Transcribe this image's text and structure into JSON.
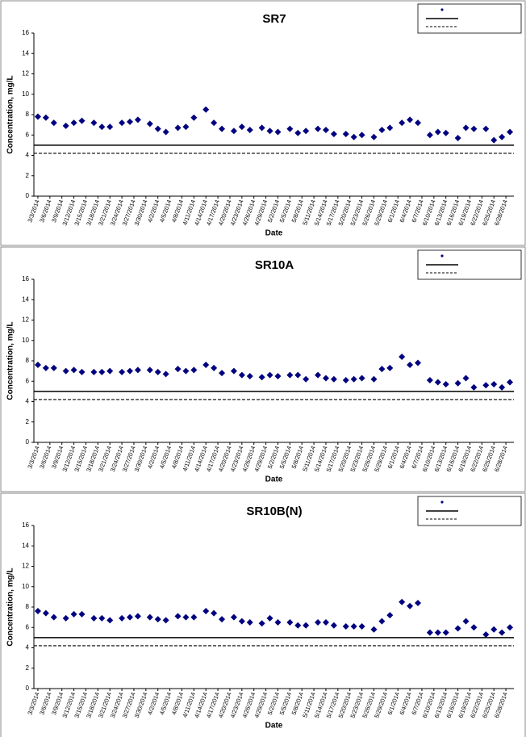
{
  "chart_data": [
    {
      "type": "scatter",
      "title": "SR7",
      "x_label": "Date",
      "y_label": "Concentration, mg/L",
      "legend": "upper right",
      "x": [
        "3/3/2014",
        "3/5/2014",
        "3/7/2014",
        "3/10/2014",
        "3/12/2014",
        "3/14/2014",
        "3/17/2014",
        "3/19/2014",
        "3/21/2014",
        "3/24/2014",
        "3/26/2014",
        "3/28/2014",
        "3/31/2014",
        "4/2/2014",
        "4/4/2014",
        "4/7/2014",
        "4/9/2014",
        "4/11/2014",
        "4/14/2014",
        "4/16/2014",
        "4/18/2014",
        "4/21/2014",
        "4/23/2014",
        "4/25/2014",
        "4/28/2014",
        "4/30/2014",
        "5/2/2014",
        "5/5/2014",
        "5/7/2014",
        "5/9/2014",
        "5/12/2014",
        "5/14/2014",
        "5/16/2014",
        "5/19/2014",
        "5/21/2014",
        "5/23/2014",
        "5/26/2014",
        "5/28/2014",
        "5/30/2014",
        "6/2/2014",
        "6/4/2014",
        "6/6/2014",
        "6/9/2014",
        "6/11/2014",
        "6/13/2014",
        "6/16/2014",
        "6/18/2014",
        "6/20/2014",
        "6/23/2014",
        "6/25/2014",
        "6/27/2014",
        "6/29/2014"
      ],
      "series": [
        {
          "color": "#000080",
          "values": [
            7.8,
            7.7,
            7.2,
            6.9,
            7.2,
            7.4,
            7.2,
            6.8,
            6.8,
            7.2,
            7.3,
            7.5,
            7.1,
            6.6,
            6.3,
            6.7,
            6.8,
            7.7,
            8.5,
            7.2,
            6.6,
            6.4,
            6.8,
            6.5,
            6.7,
            6.4,
            6.3,
            6.6,
            6.2,
            6.4,
            6.6,
            6.5,
            6.1,
            6.1,
            5.8,
            6.0,
            5.8,
            6.5,
            6.7,
            7.2,
            7.5,
            7.2,
            6.0,
            6.3,
            6.2,
            5.7,
            6.7,
            6.6,
            6.6,
            5.5,
            5.8,
            6.3
          ]
        }
      ],
      "reference_lines": [
        {
          "value": 5,
          "style": "solid"
        },
        {
          "value": 4.2,
          "style": "dashed"
        }
      ],
      "xlim": [
        "3/2/2014",
        "6/30/2014"
      ],
      "xticks": [
        "3/3/2014",
        "3/6/2014",
        "3/9/2014",
        "3/12/2014",
        "3/15/2014",
        "3/18/2014",
        "3/21/2014",
        "3/24/2014",
        "3/27/2014",
        "3/30/2014",
        "4/2/2014",
        "4/5/2014",
        "4/8/2014",
        "4/11/2014",
        "4/14/2014",
        "4/17/2014",
        "4/20/2014",
        "4/23/2014",
        "4/26/2014",
        "4/29/2014",
        "5/2/2014",
        "5/5/2014",
        "5/8/2014",
        "5/11/2014",
        "5/14/2014",
        "5/17/2014",
        "5/20/2014",
        "5/23/2014",
        "5/26/2014",
        "5/29/2014",
        "6/1/2014",
        "6/4/2014",
        "6/7/2014",
        "6/10/2014",
        "6/13/2014",
        "6/16/2014",
        "6/19/2014",
        "6/22/2014",
        "6/25/2014",
        "6/28/2014"
      ],
      "ylim": [
        0,
        16
      ],
      "yticks": [
        0,
        2,
        4,
        6,
        8,
        10,
        12,
        14,
        16
      ]
    },
    {
      "type": "scatter",
      "title": "SR10A",
      "x_label": "Date",
      "y_label": "Concentration, mg/L",
      "legend": "upper right",
      "x": [
        "3/3/2014",
        "3/5/2014",
        "3/7/2014",
        "3/10/2014",
        "3/12/2014",
        "3/14/2014",
        "3/17/2014",
        "3/19/2014",
        "3/21/2014",
        "3/24/2014",
        "3/26/2014",
        "3/28/2014",
        "3/31/2014",
        "4/2/2014",
        "4/4/2014",
        "4/7/2014",
        "4/9/2014",
        "4/11/2014",
        "4/14/2014",
        "4/16/2014",
        "4/18/2014",
        "4/21/2014",
        "4/23/2014",
        "4/25/2014",
        "4/28/2014",
        "4/30/2014",
        "5/2/2014",
        "5/5/2014",
        "5/7/2014",
        "5/9/2014",
        "5/12/2014",
        "5/14/2014",
        "5/16/2014",
        "5/19/2014",
        "5/21/2014",
        "5/23/2014",
        "5/26/2014",
        "5/28/2014",
        "5/30/2014",
        "6/2/2014",
        "6/4/2014",
        "6/6/2014",
        "6/9/2014",
        "6/11/2014",
        "6/13/2014",
        "6/16/2014",
        "6/18/2014",
        "6/20/2014",
        "6/23/2014",
        "6/25/2014",
        "6/27/2014",
        "6/29/2014"
      ],
      "series": [
        {
          "color": "#000080",
          "values": [
            7.6,
            7.3,
            7.3,
            7.0,
            7.1,
            6.9,
            6.9,
            6.9,
            7.0,
            6.9,
            7.0,
            7.1,
            7.1,
            6.9,
            6.7,
            7.2,
            7.0,
            7.1,
            7.6,
            7.3,
            6.8,
            7.0,
            6.6,
            6.5,
            6.4,
            6.6,
            6.5,
            6.6,
            6.6,
            6.2,
            6.6,
            6.3,
            6.2,
            6.1,
            6.2,
            6.3,
            6.2,
            7.2,
            7.3,
            8.4,
            7.6,
            7.8,
            6.1,
            5.9,
            5.7,
            5.8,
            6.3,
            5.4,
            5.6,
            5.7,
            5.4,
            5.9
          ]
        }
      ],
      "reference_lines": [
        {
          "value": 5,
          "style": "solid"
        },
        {
          "value": 4.2,
          "style": "dashed"
        }
      ],
      "xlim": [
        "3/2/2014",
        "6/30/2014"
      ],
      "xticks": [
        "3/3/2014",
        "3/6/2014",
        "3/9/2014",
        "3/12/2014",
        "3/15/2014",
        "3/18/2014",
        "3/21/2014",
        "3/24/2014",
        "3/27/2014",
        "3/30/2014",
        "4/2/2014",
        "4/5/2014",
        "4/8/2014",
        "4/11/2014",
        "4/14/2014",
        "4/17/2014",
        "4/20/2014",
        "4/23/2014",
        "4/26/2014",
        "4/29/2014",
        "5/2/2014",
        "5/5/2014",
        "5/8/2014",
        "5/11/2014",
        "5/14/2014",
        "5/17/2014",
        "5/20/2014",
        "5/23/2014",
        "5/26/2014",
        "5/29/2014",
        "6/1/2014",
        "6/4/2014",
        "6/7/2014",
        "6/10/2014",
        "6/13/2014",
        "6/16/2014",
        "6/19/2014",
        "6/22/2014",
        "6/25/2014",
        "6/28/2014"
      ],
      "ylim": [
        0,
        16
      ],
      "yticks": [
        0,
        2,
        4,
        6,
        8,
        10,
        12,
        14,
        16
      ]
    },
    {
      "type": "scatter",
      "title": "SR10B(N)",
      "x_label": "Date",
      "y_label": "Concentration, mg/L",
      "legend": "upper right",
      "x": [
        "3/3/2014",
        "3/5/2014",
        "3/7/2014",
        "3/10/2014",
        "3/12/2014",
        "3/14/2014",
        "3/17/2014",
        "3/19/2014",
        "3/21/2014",
        "3/24/2014",
        "3/26/2014",
        "3/28/2014",
        "3/31/2014",
        "4/2/2014",
        "4/4/2014",
        "4/7/2014",
        "4/9/2014",
        "4/11/2014",
        "4/14/2014",
        "4/16/2014",
        "4/18/2014",
        "4/21/2014",
        "4/23/2014",
        "4/25/2014",
        "4/28/2014",
        "4/30/2014",
        "5/2/2014",
        "5/5/2014",
        "5/7/2014",
        "5/9/2014",
        "5/12/2014",
        "5/14/2014",
        "5/16/2014",
        "5/19/2014",
        "5/21/2014",
        "5/23/2014",
        "5/26/2014",
        "5/28/2014",
        "5/30/2014",
        "6/2/2014",
        "6/4/2014",
        "6/6/2014",
        "6/9/2014",
        "6/11/2014",
        "6/13/2014",
        "6/16/2014",
        "6/18/2014",
        "6/20/2014",
        "6/23/2014",
        "6/25/2014",
        "6/27/2014",
        "6/29/2014"
      ],
      "series": [
        {
          "color": "#000080",
          "values": [
            7.6,
            7.4,
            7.0,
            6.9,
            7.3,
            7.3,
            6.9,
            6.9,
            6.7,
            6.9,
            7.0,
            7.1,
            7.0,
            6.8,
            6.7,
            7.1,
            7.0,
            7.0,
            7.6,
            7.4,
            6.8,
            7.0,
            6.6,
            6.5,
            6.4,
            6.9,
            6.5,
            6.5,
            6.2,
            6.2,
            6.5,
            6.5,
            6.2,
            6.1,
            6.1,
            6.1,
            5.8,
            6.6,
            7.2,
            8.5,
            8.1,
            8.4,
            5.5,
            5.5,
            5.5,
            5.9,
            6.6,
            6.0,
            5.3,
            5.8,
            5.5,
            6.0
          ]
        }
      ],
      "reference_lines": [
        {
          "value": 5,
          "style": "solid"
        },
        {
          "value": 4.2,
          "style": "dashed"
        }
      ],
      "xlim": [
        "3/2/2014",
        "6/30/2014"
      ],
      "xticks": [
        "3/3/2014",
        "3/6/2014",
        "3/9/2014",
        "3/12/2014",
        "3/15/2014",
        "3/18/2014",
        "3/21/2014",
        "3/24/2014",
        "3/27/2014",
        "3/30/2014",
        "4/2/2014",
        "4/5/2014",
        "4/8/2014",
        "4/11/2014",
        "4/14/2014",
        "4/17/2014",
        "4/20/2014",
        "4/23/2014",
        "4/26/2014",
        "4/29/2014",
        "5/2/2014",
        "5/5/2014",
        "5/8/2014",
        "5/11/2014",
        "5/14/2014",
        "5/17/2014",
        "5/20/2014",
        "5/23/2014",
        "5/26/2014",
        "5/29/2014",
        "6/1/2014",
        "6/4/2014",
        "6/7/2014",
        "6/10/2014",
        "6/13/2014",
        "6/16/2014",
        "6/19/2014",
        "6/22/2014",
        "6/25/2014",
        "6/28/2014"
      ],
      "ylim": [
        0,
        16
      ],
      "yticks": [
        0,
        2,
        4,
        6,
        8,
        10,
        12,
        14,
        16
      ]
    }
  ]
}
